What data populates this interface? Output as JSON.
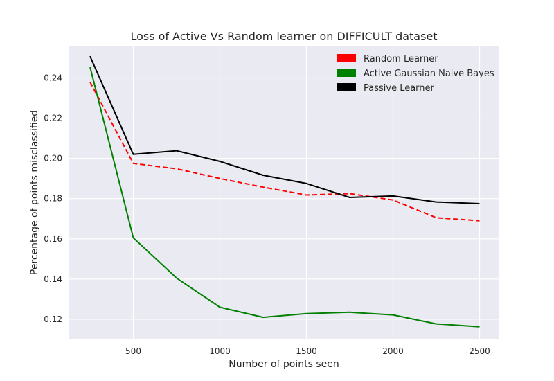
{
  "chart_data": {
    "type": "line",
    "title": "Loss of Active Vs Random learner on DIFFICULT dataset",
    "xlabel": "Number of points seen",
    "ylabel": "Percentage of points misclassified",
    "xlim": [
      130,
      2610
    ],
    "ylim": [
      0.11,
      0.256
    ],
    "xticks": [
      500,
      1000,
      1500,
      2000,
      2500
    ],
    "yticks": [
      0.12,
      0.14,
      0.16,
      0.18,
      0.2,
      0.22,
      0.24
    ],
    "ytick_labels": [
      "0.12",
      "0.14",
      "0.16",
      "0.18",
      "0.20",
      "0.22",
      "0.24"
    ],
    "grid": true,
    "legend_position": "top-right",
    "x": [
      250,
      500,
      750,
      1000,
      1250,
      1500,
      1750,
      2000,
      2250,
      2500
    ],
    "series": [
      {
        "name": "Random Learner",
        "color": "#ff0000",
        "style": "dashed",
        "values": [
          0.238,
          0.1975,
          0.1948,
          0.19,
          0.1857,
          0.1818,
          0.1825,
          0.1793,
          0.1705,
          0.169
        ]
      },
      {
        "name": "Active Gaussian Naive Bayes",
        "color": "#008000",
        "style": "solid",
        "values": [
          0.2455,
          0.1605,
          0.1405,
          0.126,
          0.121,
          0.1228,
          0.1235,
          0.1222,
          0.1177,
          0.1163
        ]
      },
      {
        "name": "Passive Learner",
        "color": "#000000",
        "style": "solid",
        "values": [
          0.2508,
          0.202,
          0.2038,
          0.1985,
          0.1916,
          0.1875,
          0.1806,
          0.1813,
          0.1783,
          0.1775
        ]
      }
    ]
  }
}
